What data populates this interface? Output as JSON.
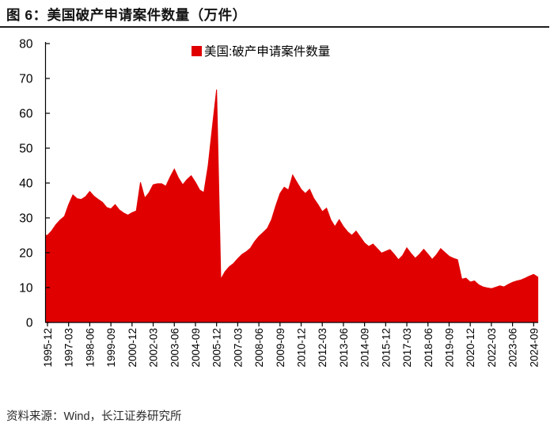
{
  "figure": {
    "title": "图 6：美国破产申请案件数量（万件）"
  },
  "source": {
    "text": "资料来源：Wind，长江证券研究所"
  },
  "chart_data": {
    "type": "area",
    "title": "美国破产申请案件数量（万件）",
    "unit": "万件",
    "grid": false,
    "background": "#ffffff",
    "axis_color": "#000000",
    "legend": {
      "position": "top-center",
      "entries": [
        {
          "label": "美国:破产申请案件数量",
          "color": "#e00000"
        }
      ]
    },
    "ylim": [
      0,
      80
    ],
    "ytick_step": 10,
    "yticks": [
      0,
      10,
      20,
      30,
      40,
      50,
      60,
      70,
      80
    ],
    "x_periods": {
      "start": "1995-12",
      "step_months": 3,
      "count": 117
    },
    "xtick_every": 5,
    "xtick_labels": [
      "1995-12",
      "1997-03",
      "1998-06",
      "1999-09",
      "2000-12",
      "2002-03",
      "2003-06",
      "2004-09",
      "2005-12",
      "2007-03",
      "2008-06",
      "2009-09",
      "2010-12",
      "2012-03",
      "2013-06",
      "2014-09",
      "2015-12",
      "2017-03",
      "2018-06",
      "2019-09",
      "2020-12",
      "2022-03",
      "2023-06",
      "2024-09"
    ],
    "series": [
      {
        "name": "美国:破产申请案件数量",
        "color": "#e00000",
        "values": [
          25.0,
          26.3,
          28.1,
          29.4,
          30.4,
          33.8,
          36.6,
          35.5,
          35.3,
          36.1,
          37.6,
          36.2,
          35.3,
          34.5,
          33.0,
          32.6,
          33.8,
          32.3,
          31.4,
          30.8,
          31.5,
          32.0,
          40.2,
          35.7,
          37.2,
          39.5,
          39.8,
          39.8,
          39.1,
          41.7,
          44.0,
          41.4,
          39.5,
          41.0,
          42.1,
          40.2,
          38.0,
          37.3,
          45.0,
          56.0,
          66.8,
          12.4,
          14.6,
          16.0,
          16.9,
          18.3,
          19.5,
          20.3,
          21.3,
          23.2,
          24.7,
          25.8,
          27.0,
          29.5,
          33.5,
          37.0,
          38.8,
          38.0,
          42.3,
          40.2,
          38.2,
          37.0,
          38.2,
          35.6,
          33.8,
          31.8,
          32.8,
          29.5,
          27.5,
          29.5,
          27.5,
          26.0,
          25.0,
          26.2,
          24.5,
          22.8,
          21.8,
          22.5,
          21.2,
          19.9,
          20.4,
          20.9,
          19.6,
          18.0,
          19.2,
          21.4,
          19.8,
          18.4,
          19.6,
          21.0,
          19.6,
          18.1,
          19.4,
          21.2,
          20.1,
          19.0,
          18.4,
          18.0,
          12.4,
          12.7,
          11.6,
          11.9,
          10.8,
          10.2,
          9.9,
          9.7,
          10.1,
          10.5,
          10.2,
          10.9,
          11.5,
          11.9,
          12.2,
          12.7,
          13.3,
          13.8,
          13.0
        ]
      }
    ]
  }
}
